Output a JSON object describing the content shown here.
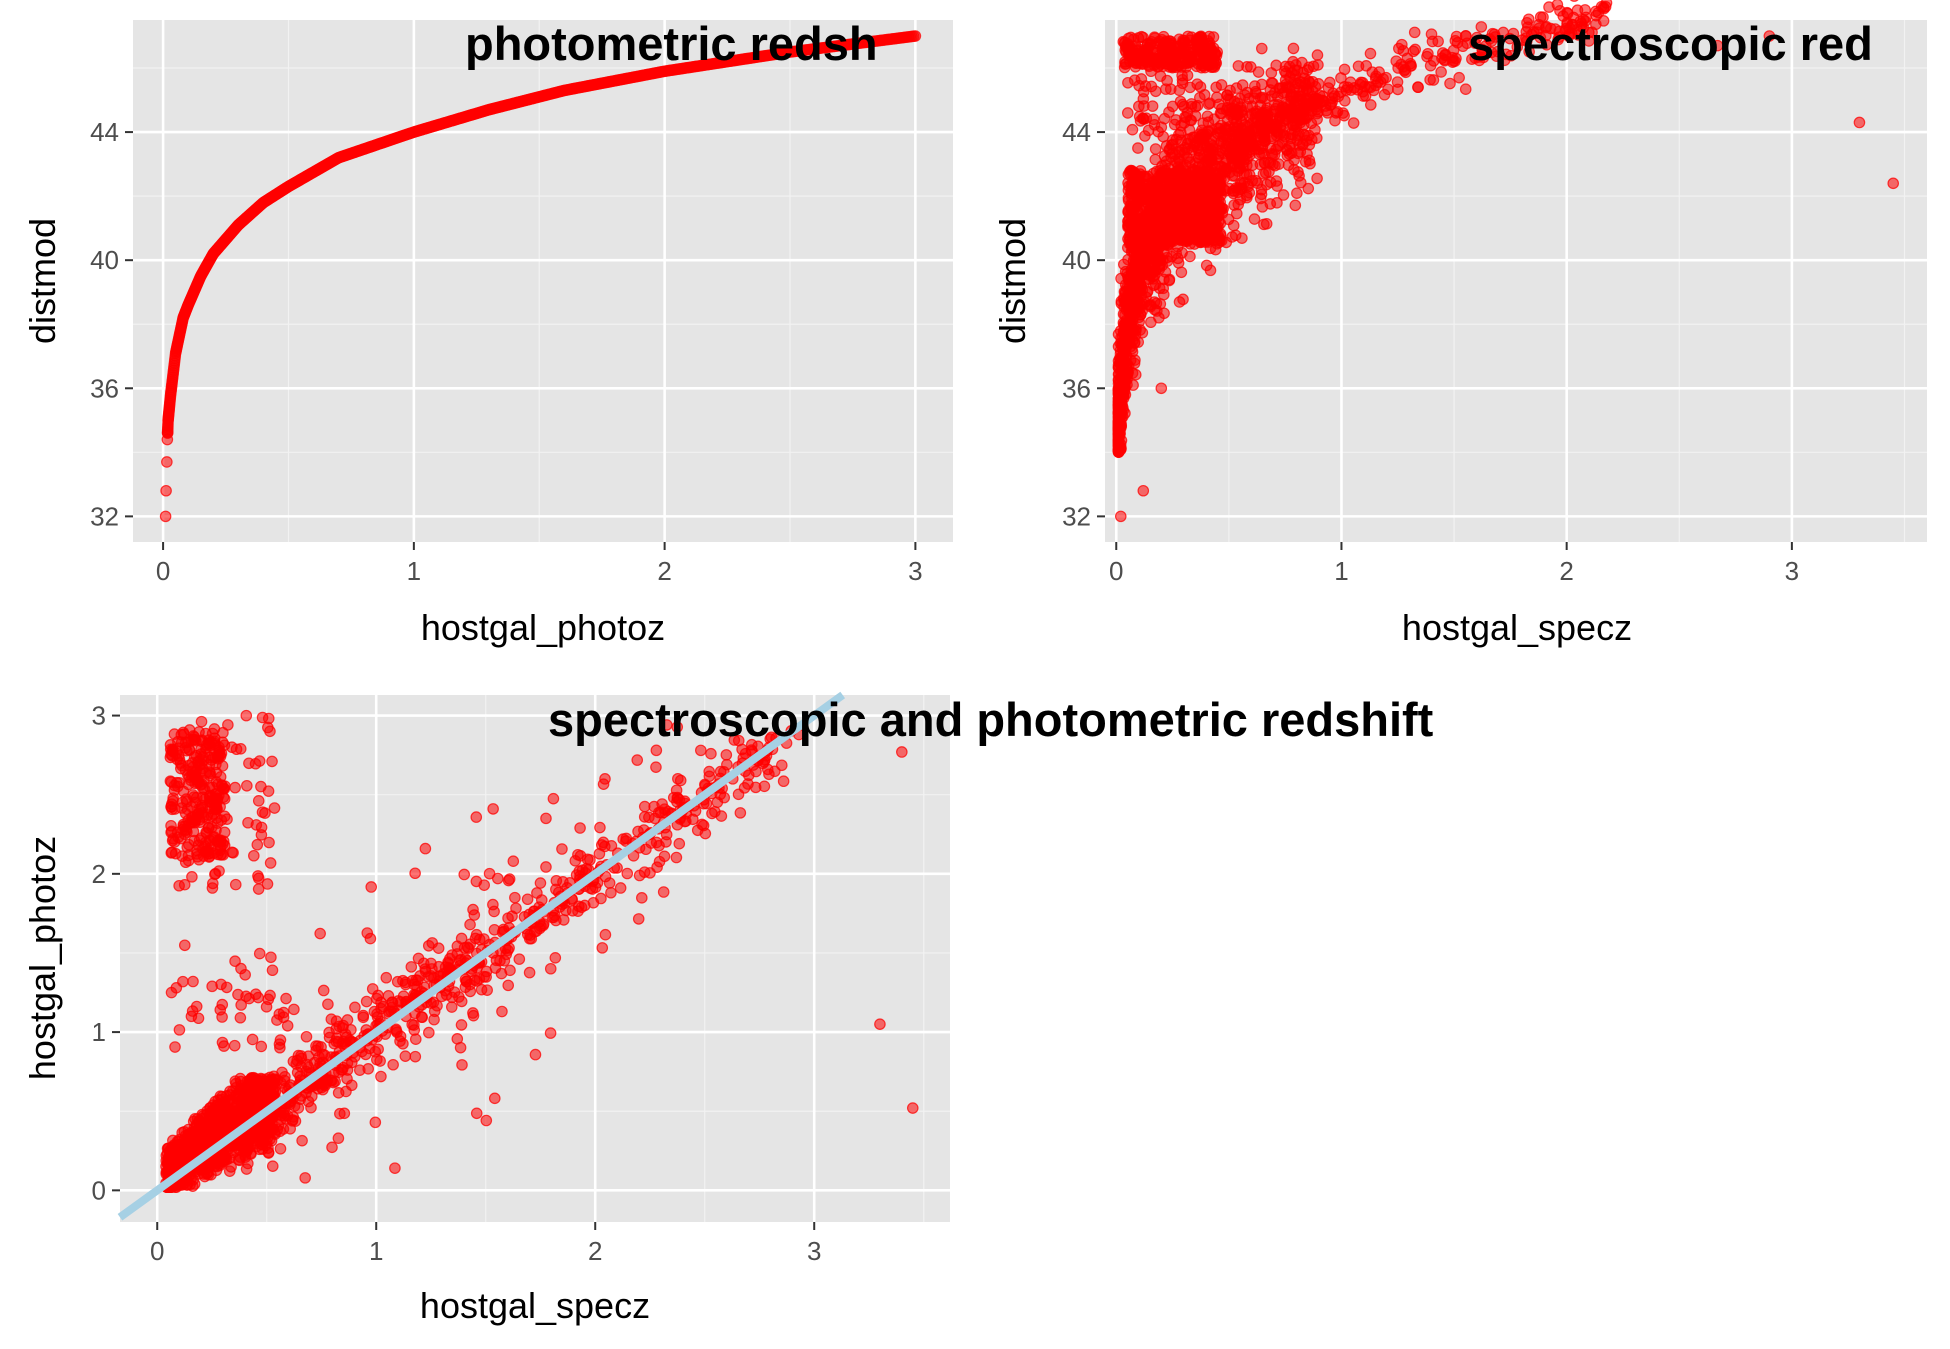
{
  "chart_data": [
    {
      "type": "scatter",
      "title": "photometric redsh",
      "xlabel": "hostgal_photoz",
      "ylabel": "distmod",
      "xlim": [
        -0.12,
        3.15
      ],
      "ylim": [
        31.2,
        47.5
      ],
      "xticks": [
        0,
        1,
        2,
        3
      ],
      "yticks": [
        32,
        36,
        40,
        44
      ],
      "grid": true,
      "point_color": "#ff0000",
      "panel_background": "#e5e5e5",
      "curve_points": [
        [
          0.01,
          32.0
        ],
        [
          0.012,
          32.8
        ],
        [
          0.015,
          33.7
        ],
        [
          0.017,
          34.4
        ],
        [
          0.02,
          35.0
        ],
        [
          0.03,
          35.8
        ],
        [
          0.05,
          37.1
        ],
        [
          0.08,
          38.2
        ],
        [
          0.1,
          38.6
        ],
        [
          0.15,
          39.5
        ],
        [
          0.2,
          40.2
        ],
        [
          0.3,
          41.1
        ],
        [
          0.4,
          41.8
        ],
        [
          0.5,
          42.3
        ],
        [
          0.7,
          43.2
        ],
        [
          1.0,
          44.0
        ],
        [
          1.3,
          44.7
        ],
        [
          1.6,
          45.3
        ],
        [
          2.0,
          45.9
        ],
        [
          2.5,
          46.5
        ],
        [
          3.0,
          47.0
        ]
      ]
    },
    {
      "type": "scatter",
      "title": "spectroscopic red",
      "xlabel": "hostgal_specz",
      "ylabel": "distmod",
      "xlim": [
        -0.05,
        3.6
      ],
      "ylim": [
        31.2,
        47.5
      ],
      "xticks": [
        0,
        1,
        2,
        3
      ],
      "yticks": [
        32,
        36,
        40,
        44
      ],
      "grid": true,
      "point_color": "#ff0000",
      "panel_background": "#e5e5e5",
      "clusters": [
        {
          "region": "main band",
          "x_range": [
            0.0,
            2.2
          ],
          "y_range": [
            34.4,
            46.5
          ]
        },
        {
          "region": "high distmod outliers",
          "x_range": [
            0.03,
            0.45
          ],
          "y_range": [
            43.2,
            47.0
          ]
        }
      ],
      "notable_points": [
        [
          0.02,
          32.0
        ],
        [
          0.12,
          32.8
        ],
        [
          0.2,
          36.0
        ],
        [
          2.67,
          46.7
        ],
        [
          2.9,
          47.0
        ],
        [
          3.3,
          44.3
        ],
        [
          3.45,
          42.4
        ]
      ]
    },
    {
      "type": "scatter",
      "title": "spectroscopic and photometric redshift",
      "xlabel": "hostgal_specz",
      "ylabel": "hostgal_photoz",
      "xlim": [
        -0.17,
        3.62
      ],
      "ylim": [
        -0.2,
        3.13
      ],
      "xticks": [
        0,
        1,
        2,
        3
      ],
      "yticks": [
        0,
        1,
        2,
        3
      ],
      "grid": true,
      "point_color": "#ff0000",
      "line_color": "#a6d0e4",
      "panel_background": "#e5e5e5",
      "reference_line": {
        "slope": 1,
        "intercept": 0
      },
      "clusters": [
        {
          "region": "low redshift blob",
          "x_range": [
            0.05,
            0.6
          ],
          "y_range": [
            0.05,
            0.7
          ]
        },
        {
          "region": "diagonal band",
          "x_range": [
            0.0,
            2.9
          ],
          "y_range": [
            0.0,
            2.9
          ]
        },
        {
          "region": "high photoz outliers",
          "x_range": [
            0.05,
            0.55
          ],
          "y_range": [
            1.9,
            3.0
          ]
        }
      ],
      "notable_points": [
        [
          3.3,
          1.05
        ],
        [
          3.45,
          0.52
        ],
        [
          3.4,
          2.77
        ],
        [
          2.93,
          2.88
        ]
      ]
    }
  ]
}
